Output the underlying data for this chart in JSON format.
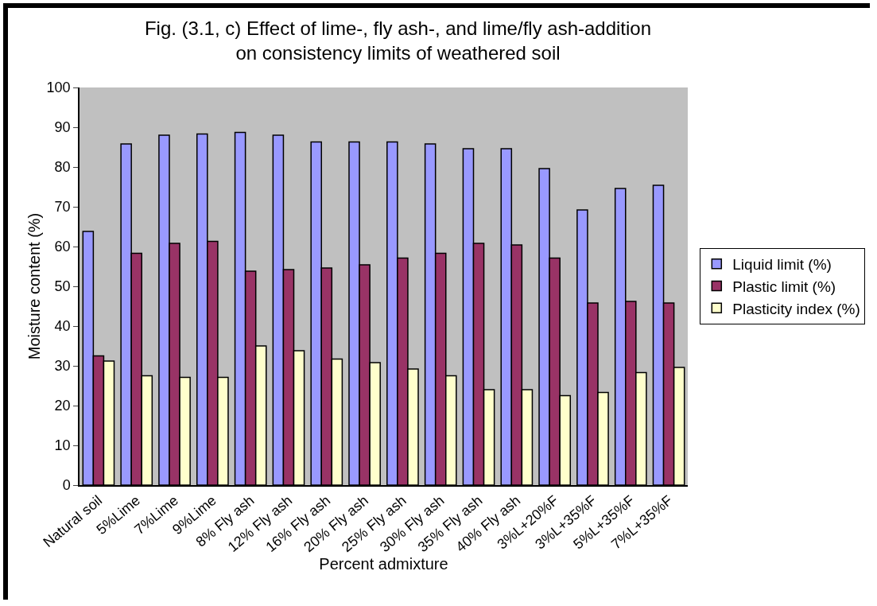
{
  "chart_data": {
    "type": "bar",
    "title": "Fig. (3.1, c) Effect of lime-, fly ash-, and lime/fly ash-addition on consistency limits of weathered soil",
    "xlabel": "Percent admixture",
    "ylabel": "Moisture content (%)",
    "categories": [
      "Natural soil",
      "5%Lime",
      "7%Lime",
      "9%Lime",
      "8% Fly ash",
      "12% Fly ash",
      "16% Fly ash",
      "20% Fly ash",
      "25% Fly ash",
      "30% Fly ash",
      "35% Fly ash",
      "40% Fly ash",
      "3%L+20%F",
      "3%L+35%F",
      "5%L+35%F",
      "7%L+35%F"
    ],
    "series": [
      {
        "name": "Liquid limit (%)",
        "color": "#9999ff",
        "values": [
          63.8,
          85.8,
          88,
          88.3,
          88.7,
          88,
          86.3,
          86.3,
          86.3,
          85.8,
          84.6,
          84.6,
          79.6,
          69.2,
          74.6,
          75.4
        ]
      },
      {
        "name": "Plastic limit (%)",
        "color": "#993366",
        "values": [
          32.5,
          58.3,
          60.8,
          61.3,
          53.8,
          54.2,
          54.6,
          55.4,
          57.1,
          58.3,
          60.8,
          60.4,
          57.1,
          45.8,
          46.2,
          45.8
        ]
      },
      {
        "name": "Plasticity index (%)",
        "color": "#ffffcc",
        "values": [
          31.2,
          27.5,
          27.1,
          27.1,
          35,
          33.8,
          31.7,
          30.8,
          29.2,
          27.5,
          24,
          24,
          22.5,
          23.3,
          28.3,
          29.6
        ]
      }
    ],
    "ylim": [
      0,
      100
    ],
    "yticks": [
      0,
      10,
      20,
      30,
      40,
      50,
      60,
      70,
      80,
      90,
      100
    ],
    "grid": false,
    "legend": "right"
  }
}
